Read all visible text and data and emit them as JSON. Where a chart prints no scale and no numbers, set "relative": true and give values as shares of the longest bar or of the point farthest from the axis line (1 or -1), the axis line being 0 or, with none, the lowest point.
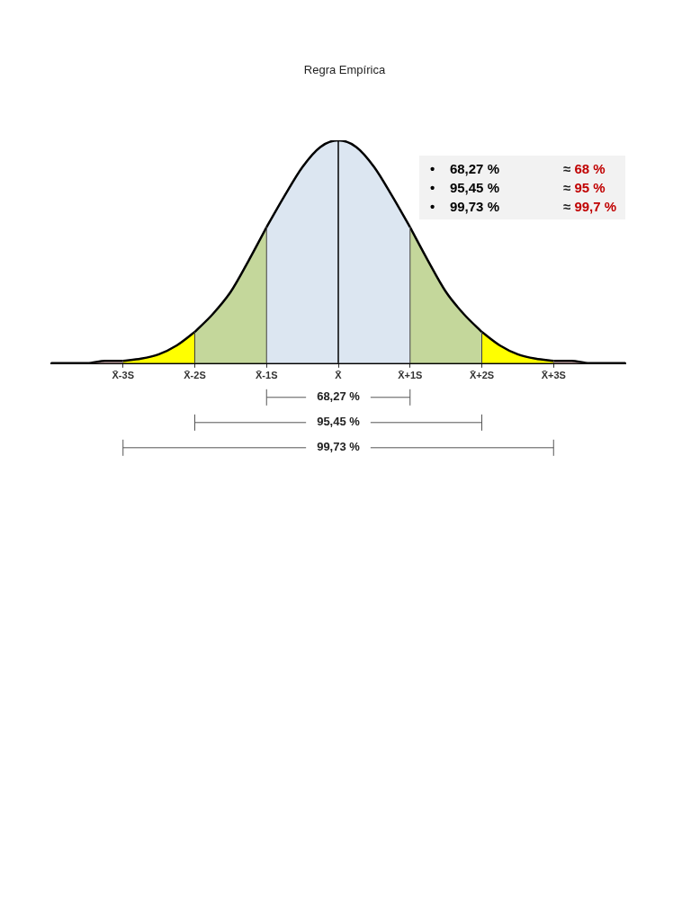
{
  "chart_data": {
    "type": "area",
    "title": "Regra Empírica",
    "relative": true,
    "xlim": [
      -4,
      4
    ],
    "xticks": [
      {
        "value": -3,
        "label": "X̄-3S"
      },
      {
        "value": -2,
        "label": "X̄-2S"
      },
      {
        "value": -1,
        "label": "X̄-1S"
      },
      {
        "value": 0,
        "label": "X̄"
      },
      {
        "value": 1,
        "label": "X̄+1S"
      },
      {
        "value": 2,
        "label": "X̄+2S"
      },
      {
        "value": 3,
        "label": "X̄+3S"
      }
    ],
    "series": [
      {
        "color": "#f4cccc",
        "x": [
          -4,
          -3.75,
          -3.5,
          -3.25,
          -3
        ],
        "values": [
          0,
          0,
          0,
          0.01,
          0.01
        ]
      },
      {
        "color": "#ffff00",
        "x": [
          -3,
          -2.75,
          -2.5,
          -2.25,
          -2
        ],
        "values": [
          0.01,
          0.02,
          0.04,
          0.08,
          0.14
        ]
      },
      {
        "color": "#c4d79b",
        "x": [
          -2,
          -1.75,
          -1.5,
          -1.25,
          -1
        ],
        "values": [
          0.14,
          0.22,
          0.32,
          0.46,
          0.61
        ]
      },
      {
        "color": "#dce6f1",
        "x": [
          -1,
          -0.75,
          -0.5,
          -0.25,
          0,
          0.25,
          0.5,
          0.75,
          1
        ],
        "values": [
          0.61,
          0.75,
          0.88,
          0.97,
          1,
          0.97,
          0.88,
          0.75,
          0.61
        ]
      },
      {
        "color": "#c4d79b",
        "x": [
          1,
          1.25,
          1.5,
          1.75,
          2
        ],
        "values": [
          0.61,
          0.46,
          0.32,
          0.22,
          0.14
        ]
      },
      {
        "color": "#ffff00",
        "x": [
          2,
          2.25,
          2.5,
          2.75,
          3
        ],
        "values": [
          0.14,
          0.08,
          0.04,
          0.02,
          0.01
        ]
      },
      {
        "color": "#f4cccc",
        "x": [
          3,
          3.25,
          3.5,
          3.75,
          4
        ],
        "values": [
          0.01,
          0.01,
          0,
          0,
          0
        ]
      }
    ],
    "ref_lines": [
      {
        "axis": "x",
        "value": -2,
        "color": "#404040"
      },
      {
        "axis": "x",
        "value": -1,
        "color": "#404040"
      },
      {
        "axis": "x",
        "value": 0,
        "color": "#000000"
      },
      {
        "axis": "x",
        "value": 1,
        "color": "#404040"
      },
      {
        "axis": "x",
        "value": 2,
        "color": "#404040"
      }
    ],
    "annotations": [
      "68,27 %",
      "95,45 %",
      "99,73 %",
      "•    68,27 %",
      "≈ 68 %",
      "•    95,45 %",
      "≈ 95 %",
      "•    99,73 %",
      "≈ 99,7 %"
    ],
    "grid": false,
    "legend": false
  }
}
